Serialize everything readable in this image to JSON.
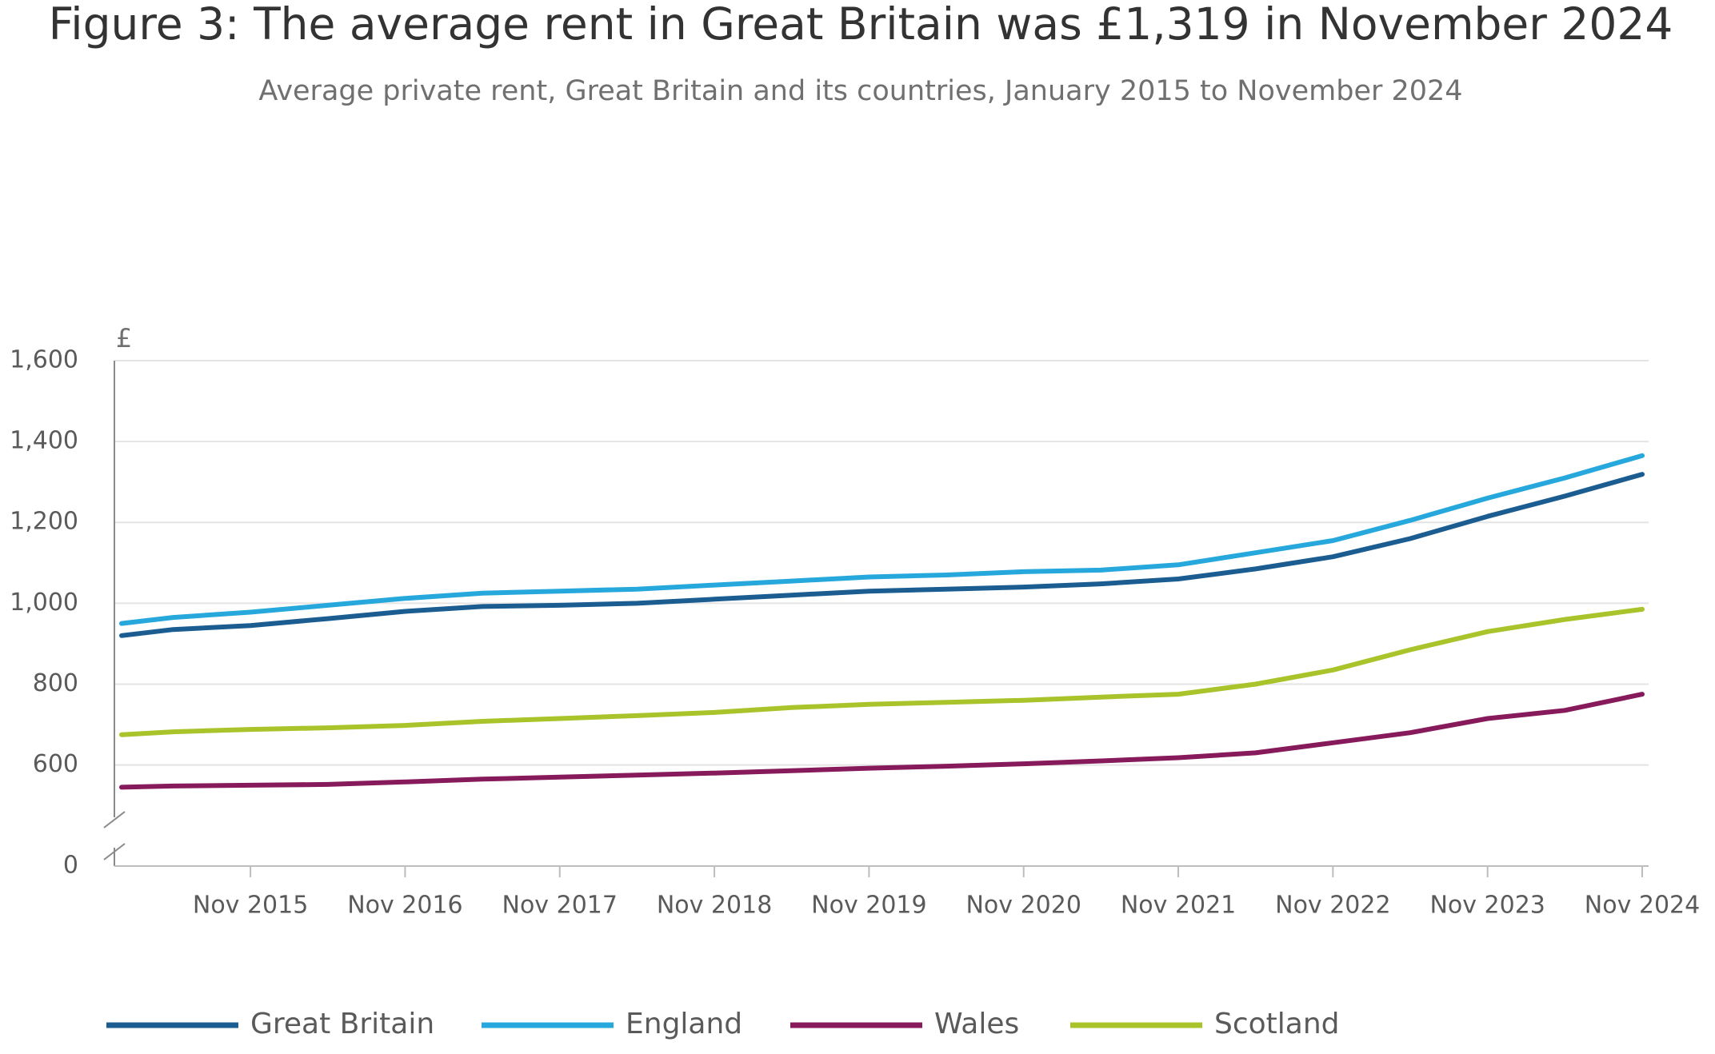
{
  "chart_data": {
    "type": "line",
    "title": "Figure 3: The average rent in Great Britain was £1,319 in November 2024",
    "subtitle": "Average private rent, Great Britain and its countries, January 2015 to November 2024",
    "y_label": "£",
    "x": [
      "2015-01",
      "2015-05",
      "2015-11",
      "2016-05",
      "2016-11",
      "2017-05",
      "2017-11",
      "2018-05",
      "2018-11",
      "2019-05",
      "2019-11",
      "2020-05",
      "2020-11",
      "2021-05",
      "2021-11",
      "2022-05",
      "2022-11",
      "2023-05",
      "2023-11",
      "2024-05",
      "2024-11"
    ],
    "xlim": [
      "2015-01",
      "2024-11"
    ],
    "xticks": [
      {
        "value": "2015-11",
        "label": "Nov 2015"
      },
      {
        "value": "2016-11",
        "label": "Nov 2016"
      },
      {
        "value": "2017-11",
        "label": "Nov 2017"
      },
      {
        "value": "2018-11",
        "label": "Nov 2018"
      },
      {
        "value": "2019-11",
        "label": "Nov 2019"
      },
      {
        "value": "2020-11",
        "label": "Nov 2020"
      },
      {
        "value": "2021-11",
        "label": "Nov 2021"
      },
      {
        "value": "2022-11",
        "label": "Nov 2022"
      },
      {
        "value": "2023-11",
        "label": "Nov 2023"
      },
      {
        "value": "2024-11",
        "label": "Nov 2024"
      }
    ],
    "ylim": [
      0,
      1600
    ],
    "y_break": [
      0,
      350
    ],
    "yticks": [
      0,
      600,
      800,
      {
        "value": 1000,
        "label": "1,000"
      },
      {
        "value": 1200,
        "label": "1,200"
      },
      {
        "value": 1400,
        "label": "1,400"
      },
      {
        "value": 1600,
        "label": "1,600"
      }
    ],
    "grid": true,
    "legend": "bottom",
    "series": [
      {
        "name": "Great Britain",
        "color": "#1b5d91",
        "values": [
          920,
          935,
          945,
          962,
          980,
          992,
          995,
          1000,
          1010,
          1020,
          1030,
          1035,
          1040,
          1048,
          1060,
          1085,
          1115,
          1160,
          1215,
          1265,
          1319
        ]
      },
      {
        "name": "England",
        "color": "#27a8dc",
        "values": [
          950,
          965,
          978,
          995,
          1012,
          1025,
          1030,
          1035,
          1045,
          1055,
          1065,
          1070,
          1078,
          1082,
          1095,
          1125,
          1155,
          1205,
          1260,
          1310,
          1365
        ]
      },
      {
        "name": "Wales",
        "color": "#871a5b",
        "values": [
          545,
          548,
          550,
          552,
          558,
          565,
          570,
          575,
          580,
          586,
          592,
          597,
          603,
          610,
          618,
          630,
          655,
          680,
          715,
          735,
          775
        ]
      },
      {
        "name": "Scotland",
        "color": "#a8c42a",
        "values": [
          675,
          682,
          688,
          692,
          698,
          708,
          715,
          722,
          730,
          742,
          750,
          755,
          760,
          768,
          775,
          800,
          835,
          885,
          930,
          960,
          985
        ]
      }
    ]
  }
}
